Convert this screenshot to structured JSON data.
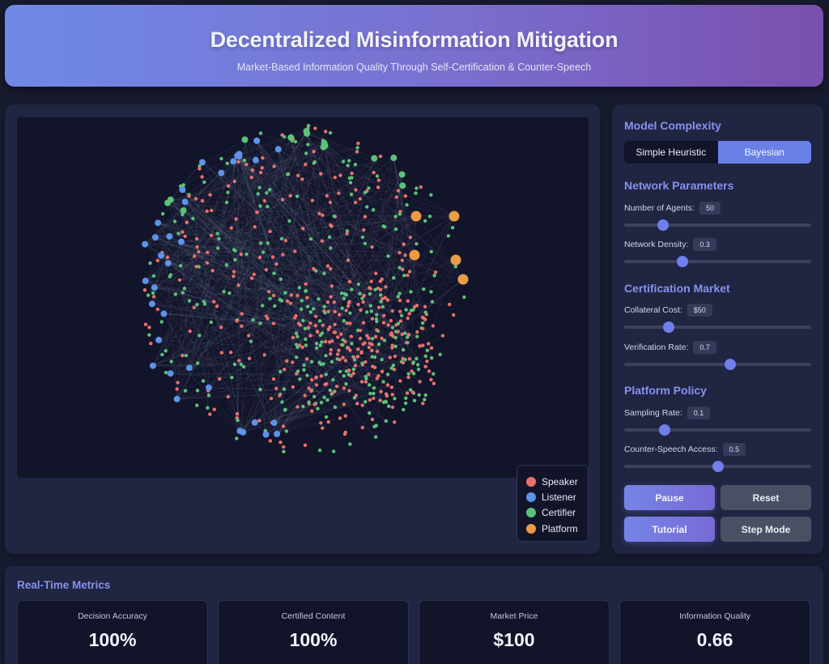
{
  "header": {
    "title": "Decentralized Misinformation Mitigation",
    "subtitle": "Market-Based Information Quality Through Self-Certification & Counter-Speech"
  },
  "legend": [
    {
      "label": "Speaker",
      "color": "#e8716b"
    },
    {
      "label": "Listener",
      "color": "#5d93e8"
    },
    {
      "label": "Certifier",
      "color": "#5cc27a"
    },
    {
      "label": "Platform",
      "color": "#ed9a44"
    }
  ],
  "colors": {
    "accent": "#6f80ec",
    "speaker": "#e8716b",
    "listener": "#5d93e8",
    "certifier": "#5cc27a",
    "platform": "#ed9a44"
  },
  "model": {
    "title": "Model Complexity",
    "options": [
      "Simple Heuristic",
      "Bayesian"
    ],
    "selected": "Bayesian"
  },
  "network": {
    "title": "Network Parameters",
    "agents": {
      "label": "Number of Agents:",
      "value": "50",
      "fraction": 0.19
    },
    "density": {
      "label": "Network Density:",
      "value": "0.3",
      "fraction": 0.3
    }
  },
  "certification": {
    "title": "Certification Market",
    "cost": {
      "label": "Collateral Cost:",
      "value": "$50",
      "fraction": 0.22
    },
    "verification": {
      "label": "Verification Rate:",
      "value": "0.7",
      "fraction": 0.57
    }
  },
  "platform": {
    "title": "Platform Policy",
    "sampling": {
      "label": "Sampling Rate:",
      "value": "0.1",
      "fraction": 0.2
    },
    "counter": {
      "label": "Counter-Speech Access:",
      "value": "0.5",
      "fraction": 0.5
    }
  },
  "buttons": {
    "pause": "Pause",
    "reset": "Reset",
    "tutorial": "Tutorial",
    "step": "Step Mode"
  },
  "metrics": {
    "title": "Real-Time Metrics",
    "cards": [
      {
        "label": "Decision Accuracy",
        "value": "100%"
      },
      {
        "label": "Certified Content",
        "value": "100%"
      },
      {
        "label": "Market Price",
        "value": "$100"
      },
      {
        "label": "Information Quality",
        "value": "0.66"
      }
    ]
  }
}
